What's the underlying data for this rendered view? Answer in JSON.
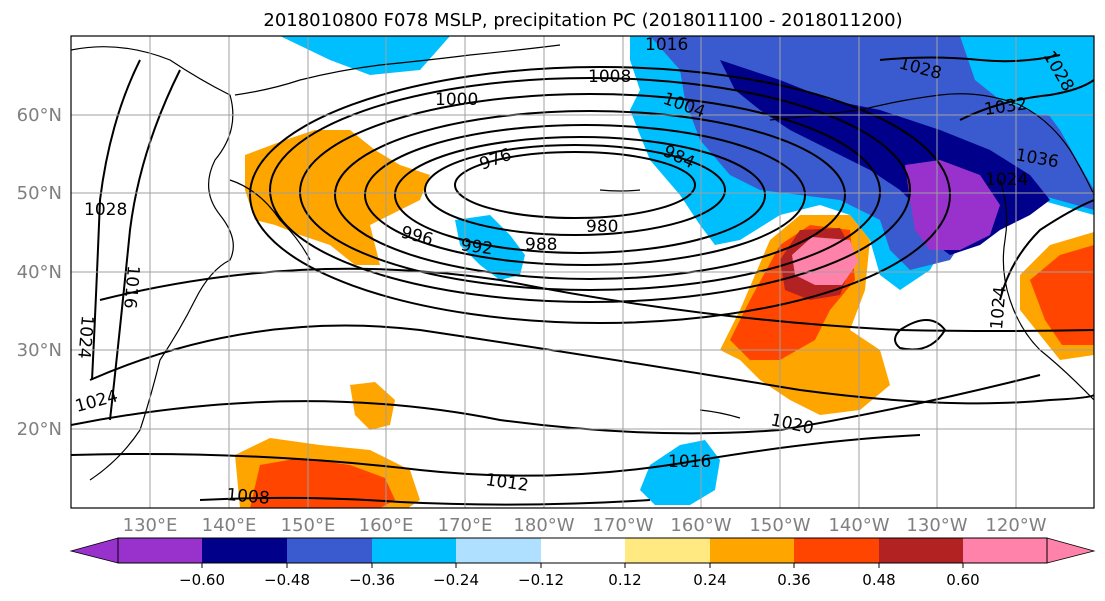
{
  "title": "2018010800 F078 MSLP, precipitation PC (2018011100 - 2018011200)",
  "lat_ticks": [
    "60°N",
    "50°N",
    "40°N",
    "30°N",
    "20°N"
  ],
  "lon_ticks": [
    "130°E",
    "140°E",
    "150°E",
    "160°E",
    "170°E",
    "180°W",
    "170°W",
    "160°W",
    "150°W",
    "140°W",
    "130°W",
    "120°W"
  ],
  "colorbar": {
    "ticks": [
      "−0.60",
      "−0.48",
      "−0.36",
      "−0.24",
      "−0.12",
      "0.12",
      "0.24",
      "0.36",
      "0.48",
      "0.60"
    ],
    "colors": [
      "#9932CC",
      "#00008B",
      "#3A5BCF",
      "#00BFFF",
      "#B0E0FF",
      "#FFFFFF",
      "#FFE980",
      "#FFA500",
      "#FF4500",
      "#B22222",
      "#FF82AB"
    ]
  },
  "contour_labels": [
    "1016",
    "1008",
    "1004",
    "1000",
    "976",
    "984",
    "980",
    "988",
    "992",
    "996",
    "1028",
    "1032",
    "1036",
    "1024",
    "1020",
    "1012",
    "1016",
    "1008",
    "1024",
    "1028",
    "1024",
    "1028",
    "1024",
    "1016"
  ],
  "chart_data": {
    "type": "heatmap",
    "variables": [
      "MSLP",
      "precipitation PC"
    ],
    "mslp_contour_levels_shown": [
      976,
      980,
      984,
      988,
      992,
      996,
      1000,
      1004,
      1008,
      1012,
      1016,
      1020,
      1024,
      1028,
      1032,
      1036
    ],
    "colorbar_levels": [
      -0.6,
      -0.48,
      -0.36,
      -0.24,
      -0.12,
      0.12,
      0.24,
      0.36,
      0.48,
      0.6
    ],
    "lat_range": [
      10,
      70
    ],
    "lon_range_east": [
      120,
      250
    ],
    "grid": true
  }
}
